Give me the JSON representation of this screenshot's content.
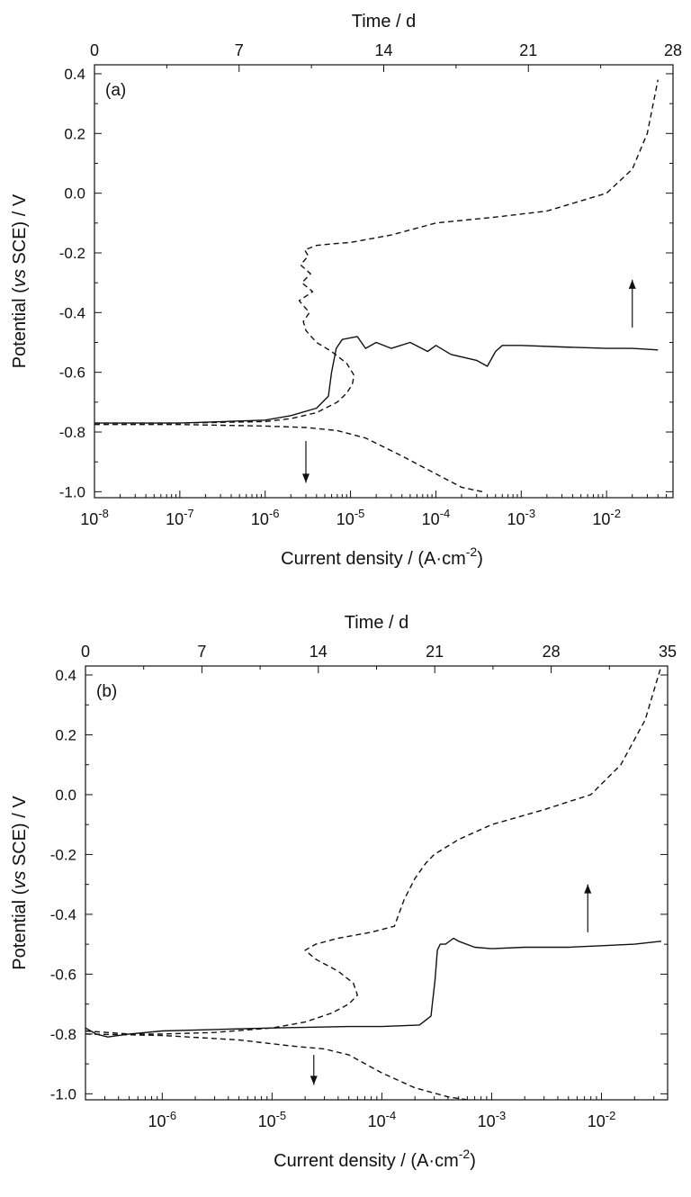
{
  "chart_data": [
    {
      "type": "line",
      "panel_label": "(a)",
      "xlabel": "Current density / (A·cm⁻²)",
      "xlabel_base": "Current density / (A·cm",
      "xlabel_exp": "-2",
      "xlabel_close": ")",
      "top_axis_label": "Time / d",
      "ylabel": "Potential (vs SCE) / V",
      "ylabel_pre": "Potential (",
      "ylabel_ital": "vs",
      "ylabel_post": " SCE) / V",
      "x_scale": "log",
      "xlim": [
        1e-08,
        0.06
      ],
      "ylim": [
        -1.02,
        0.43
      ],
      "x_ticks": [
        -8,
        -7,
        -6,
        -5,
        -4,
        -3,
        -2
      ],
      "x_tick_labels": [
        "10-8",
        "10-7",
        "10-6",
        "10-5",
        "10-4",
        "10-3",
        "10-2"
      ],
      "y_ticks": [
        -1.0,
        -0.8,
        -0.6,
        -0.4,
        -0.2,
        0.0,
        0.2,
        0.4
      ],
      "y_tick_labels": [
        "-1.0",
        "-0.8",
        "-0.6",
        "-0.4",
        "-0.2",
        "0.0",
        "0.2",
        "0.4"
      ],
      "top_xlim": [
        0,
        28
      ],
      "top_ticks": [
        0,
        7,
        14,
        21,
        28
      ],
      "top_tick_labels": [
        "0",
        "7",
        "14",
        "21",
        "28"
      ],
      "grid": false,
      "series": [
        {
          "style": "solid",
          "x": [
            1e-08,
            1e-07,
            1e-06,
            2e-06,
            4e-06,
            5.5e-06,
            6e-06,
            6.8e-06,
            8e-06,
            1.2e-05,
            1.5e-05,
            2e-05,
            3e-05,
            5e-05,
            8e-05,
            0.0001,
            0.00015,
            0.0003,
            0.0004,
            0.0005,
            0.0006,
            0.001,
            0.003,
            0.01,
            0.02,
            0.04
          ],
          "y": [
            -0.77,
            -0.77,
            -0.76,
            -0.745,
            -0.72,
            -0.68,
            -0.6,
            -0.52,
            -0.49,
            -0.48,
            -0.52,
            -0.5,
            -0.52,
            -0.5,
            -0.53,
            -0.51,
            -0.54,
            -0.56,
            -0.58,
            -0.53,
            -0.51,
            -0.51,
            -0.515,
            -0.52,
            -0.52,
            -0.525
          ]
        },
        {
          "style": "dashed",
          "x": [
            1e-08,
            1e-07,
            1e-06,
            2e-06,
            4e-06,
            7e-06,
            9e-06,
            1.05e-05,
            1.1e-05,
            9e-06,
            6e-06,
            4e-06,
            3e-06,
            2.8e-06,
            3.3e-06,
            2.5e-06,
            3.6e-06,
            2.7e-06,
            3.4e-06,
            2.6e-06,
            3.2e-06,
            2.9e-06,
            4e-06,
            6e-06,
            1e-05,
            3e-05,
            0.0001,
            0.0005,
            0.002,
            0.01,
            0.02,
            0.03,
            0.04
          ],
          "y": [
            -0.77,
            -0.77,
            -0.765,
            -0.755,
            -0.735,
            -0.7,
            -0.67,
            -0.64,
            -0.61,
            -0.57,
            -0.53,
            -0.5,
            -0.46,
            -0.43,
            -0.4,
            -0.36,
            -0.33,
            -0.3,
            -0.27,
            -0.24,
            -0.21,
            -0.19,
            -0.175,
            -0.17,
            -0.165,
            -0.14,
            -0.1,
            -0.08,
            -0.06,
            0.0,
            0.08,
            0.2,
            0.38
          ]
        },
        {
          "style": "dashed",
          "x": [
            1e-08,
            1e-07,
            1e-06,
            3e-06,
            7e-06,
            1.5e-05,
            4e-05,
            0.0001,
            0.0002,
            0.00035
          ],
          "y": [
            -0.775,
            -0.775,
            -0.78,
            -0.785,
            -0.795,
            -0.82,
            -0.88,
            -0.94,
            -0.985,
            -1.0
          ]
        }
      ],
      "arrows": [
        {
          "direction": "down",
          "x": 3e-06,
          "y_from": -0.83,
          "y_to": -0.97
        },
        {
          "direction": "up",
          "x": 0.02,
          "y_from": -0.45,
          "y_to": -0.29
        }
      ]
    },
    {
      "type": "line",
      "panel_label": "(b)",
      "xlabel": "Current density / (A·cm⁻²)",
      "xlabel_base": "Current density / (A·cm",
      "xlabel_exp": "-2",
      "xlabel_close": ")",
      "top_axis_label": "Time / d",
      "ylabel": "Potential (vs SCE) / V",
      "ylabel_pre": "Potential (",
      "ylabel_ital": "vs",
      "ylabel_post": " SCE) / V",
      "x_scale": "log",
      "xlim": [
        2e-07,
        0.04
      ],
      "ylim": [
        -1.02,
        0.43
      ],
      "x_ticks": [
        -6,
        -5,
        -4,
        -3,
        -2
      ],
      "x_tick_labels": [
        "10-6",
        "10-5",
        "10-4",
        "10-3",
        "10-2"
      ],
      "y_ticks": [
        -1.0,
        -0.8,
        -0.6,
        -0.4,
        -0.2,
        0.0,
        0.2,
        0.4
      ],
      "y_tick_labels": [
        "-1.0",
        "-0.8",
        "-0.6",
        "-0.4",
        "-0.2",
        "0.0",
        "0.2",
        "0.4"
      ],
      "top_xlim": [
        0,
        35
      ],
      "top_ticks": [
        0,
        7,
        14,
        21,
        28,
        35
      ],
      "top_tick_labels": [
        "0",
        "7",
        "14",
        "21",
        "28",
        "35"
      ],
      "grid": false,
      "series": [
        {
          "style": "solid",
          "x": [
            2e-07,
            2.5e-07,
            3.2e-07,
            5e-07,
            1e-06,
            3e-06,
            1e-05,
            5e-05,
            0.0001,
            0.00022,
            0.00028,
            0.000305,
            0.00032,
            0.00034,
            0.00038,
            0.00045,
            0.0005,
            0.0007,
            0.001,
            0.002,
            0.005,
            0.01,
            0.02,
            0.035
          ],
          "y": [
            -0.78,
            -0.8,
            -0.81,
            -0.8,
            -0.79,
            -0.785,
            -0.78,
            -0.775,
            -0.775,
            -0.77,
            -0.74,
            -0.62,
            -0.52,
            -0.5,
            -0.5,
            -0.48,
            -0.49,
            -0.51,
            -0.515,
            -0.51,
            -0.51,
            -0.505,
            -0.5,
            -0.49
          ]
        },
        {
          "style": "dashed",
          "x": [
            2e-07,
            5e-07,
            1e-06,
            3e-06,
            1e-05,
            2e-05,
            3.5e-05,
            5e-05,
            6e-05,
            5.5e-05,
            4e-05,
            2.5e-05,
            2e-05,
            2.5e-05,
            4e-05,
            8e-05,
            0.00013,
            0.00016,
            0.0002,
            0.00025,
            0.0003,
            0.0005,
            0.001,
            0.003,
            0.008,
            0.015,
            0.025,
            0.035
          ],
          "y": [
            -0.79,
            -0.8,
            -0.8,
            -0.795,
            -0.78,
            -0.76,
            -0.73,
            -0.7,
            -0.67,
            -0.63,
            -0.59,
            -0.55,
            -0.52,
            -0.5,
            -0.48,
            -0.46,
            -0.44,
            -0.35,
            -0.28,
            -0.23,
            -0.2,
            -0.15,
            -0.1,
            -0.05,
            0.0,
            0.1,
            0.25,
            0.43
          ]
        },
        {
          "style": "dashed",
          "x": [
            2e-07,
            1e-06,
            5e-06,
            1.5e-05,
            3e-05,
            5e-05,
            0.0001,
            0.0002,
            0.0004,
            0.0006
          ],
          "y": [
            -0.8,
            -0.805,
            -0.82,
            -0.84,
            -0.85,
            -0.87,
            -0.93,
            -0.98,
            -1.01,
            -1.02
          ]
        }
      ],
      "arrows": [
        {
          "direction": "down",
          "x": 2.4e-05,
          "y_from": -0.87,
          "y_to": -0.97
        },
        {
          "direction": "up",
          "x": 0.0075,
          "y_from": -0.46,
          "y_to": -0.3
        }
      ]
    }
  ]
}
